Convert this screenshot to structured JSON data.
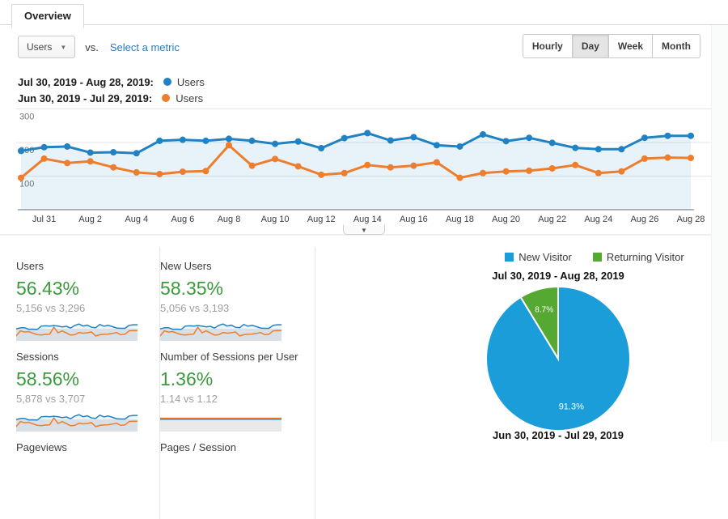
{
  "tab_bar": {
    "tabs": [
      {
        "label": "Overview",
        "active": true
      }
    ]
  },
  "toolbar": {
    "metric_dropdown": {
      "value": "Users"
    },
    "vs_label": "vs.",
    "compare_link": "Select a metric",
    "granularity_options": [
      "Hourly",
      "Day",
      "Week",
      "Month"
    ],
    "granularity_selected": "Day"
  },
  "series_legend": [
    {
      "date_range": "Jul 30, 2019 - Aug 28, 2019:",
      "metric": "Users",
      "color": "#2081c3"
    },
    {
      "date_range": "Jun 30, 2019 - Jul 29, 2019:",
      "metric": "Users",
      "color": "#ee7d2d"
    }
  ],
  "chart_data": [
    {
      "id": "main-timeseries",
      "type": "line",
      "x_tick_labels": [
        "Jul 31",
        "Aug 2",
        "Aug 4",
        "Aug 6",
        "Aug 8",
        "Aug 10",
        "Aug 12",
        "Aug 14",
        "Aug 16",
        "Aug 18",
        "Aug 20",
        "Aug 22",
        "Aug 24",
        "Aug 26",
        "Aug 28"
      ],
      "y_ticks": [
        100,
        200,
        300
      ],
      "ylim": [
        0,
        300
      ],
      "grid": true,
      "legend_position": "top-left",
      "series": [
        {
          "name": "Users (Jul 30, 2019 - Aug 28, 2019)",
          "color": "#2081c3",
          "values": [
            175,
            186,
            188,
            170,
            171,
            168,
            205,
            208,
            205,
            211,
            205,
            196,
            203,
            183,
            213,
            228,
            206,
            216,
            192,
            188,
            224,
            204,
            214,
            199,
            184,
            180,
            180,
            214,
            220,
            220
          ]
        },
        {
          "name": "Users (Jun 30, 2019 - Jul 29, 2019)",
          "color": "#ee7d2d",
          "values": [
            95,
            152,
            139,
            144,
            126,
            111,
            106,
            113,
            115,
            192,
            131,
            151,
            129,
            104,
            109,
            133,
            126,
            131,
            141,
            95,
            109,
            114,
            116,
            123,
            133,
            109,
            114,
            152,
            155,
            154
          ]
        }
      ]
    },
    {
      "id": "visitor-type-pie",
      "type": "pie",
      "legend": [
        "New Visitor",
        "Returning Visitor"
      ],
      "title": "Jul 30, 2019 - Aug 28, 2019",
      "labels": [
        "New Visitor",
        "Returning Visitor"
      ],
      "values": [
        91.3,
        8.7
      ],
      "value_labels": [
        "91.3%",
        "8.7%"
      ],
      "colors": [
        "#1b9dd9",
        "#55a832"
      ],
      "footer_title": "Jun 30, 2019 - Jul 29, 2019"
    }
  ],
  "scorecards": [
    {
      "title": "Users",
      "pct_change": "56.43%",
      "comparison": "5,156 vs 3,296",
      "spark_source": "main-timeseries"
    },
    {
      "title": "New Users",
      "pct_change": "58.35%",
      "comparison": "5,056 vs 3,193",
      "spark_source": "main-timeseries"
    },
    {
      "title": "Sessions",
      "pct_change": "58.56%",
      "comparison": "5,878 vs 3,707",
      "spark_source": "main-timeseries"
    },
    {
      "title": "Number of Sessions per User",
      "pct_change": "1.36%",
      "comparison": "1.14 vs 1.12",
      "spark_flat": {
        "current": 1.14,
        "previous": 1.12
      }
    }
  ],
  "scorecards_next_row": [
    "Pageviews",
    "Pages / Session"
  ],
  "colors": {
    "positive_green": "#3a9b3c",
    "link_blue": "#3079bd",
    "fill_blue": "rgba(32,129,195,0.10)"
  }
}
